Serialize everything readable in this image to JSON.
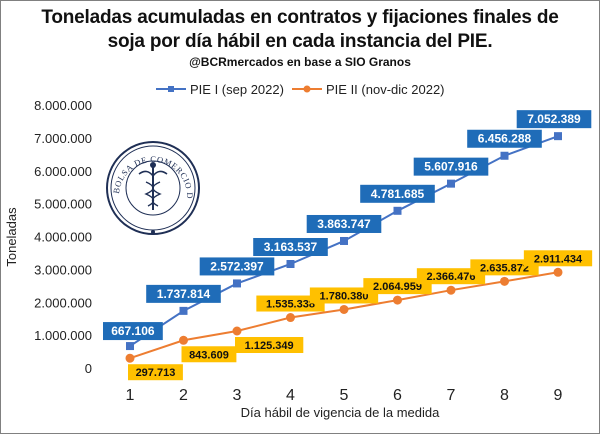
{
  "title_line1": "Toneladas acumuladas en contratos y fijaciones finales de",
  "title_line2": "soja por día hábil en cada instancia del PIE.",
  "subtitle": "@BCRmercados en base a SIO Granos",
  "logo_text": "BOLSA DE COMERCIO DE ROSARIO",
  "colors": {
    "series1": "#4472C4",
    "series1_label_bg": "#1F6CB8",
    "series2": "#ED7D31",
    "series2_label_bg": "#FFC000"
  },
  "chart_data": {
    "type": "line",
    "x": [
      1,
      2,
      3,
      4,
      5,
      6,
      7,
      8,
      9
    ],
    "xlabel": "Día hábil de vigencia de la medida",
    "ylabel": "Toneladas",
    "ylim": [
      0,
      8000000
    ],
    "yticks": [
      "0",
      "1.000.000",
      "2.000.000",
      "3.000.000",
      "4.000.000",
      "5.000.000",
      "6.000.000",
      "7.000.000",
      "8.000.000"
    ],
    "grid": false,
    "legend_position": "top",
    "series": [
      {
        "name": "PIE I (sep 2022)",
        "values": [
          667106,
          1737814,
          2572397,
          3163537,
          3863747,
          4781685,
          5607916,
          6456288,
          7052389
        ],
        "labels": [
          "667.106",
          "1.737.814",
          "2.572.397",
          "3.163.537",
          "3.863.747",
          "4.781.685",
          "5.607.916",
          "6.456.288",
          "7.052.389"
        ]
      },
      {
        "name": "PIE II (nov-dic 2022)",
        "values": [
          297713,
          843609,
          1125349,
          1535338,
          1780380,
          2064959,
          2366476,
          2635872,
          2911434
        ],
        "labels": [
          "297.713",
          "843.609",
          "1.125.349",
          "1.535.338",
          "1.780.380",
          "2.064.959",
          "2.366.476",
          "2.635.872",
          "2.911.434"
        ]
      }
    ]
  }
}
